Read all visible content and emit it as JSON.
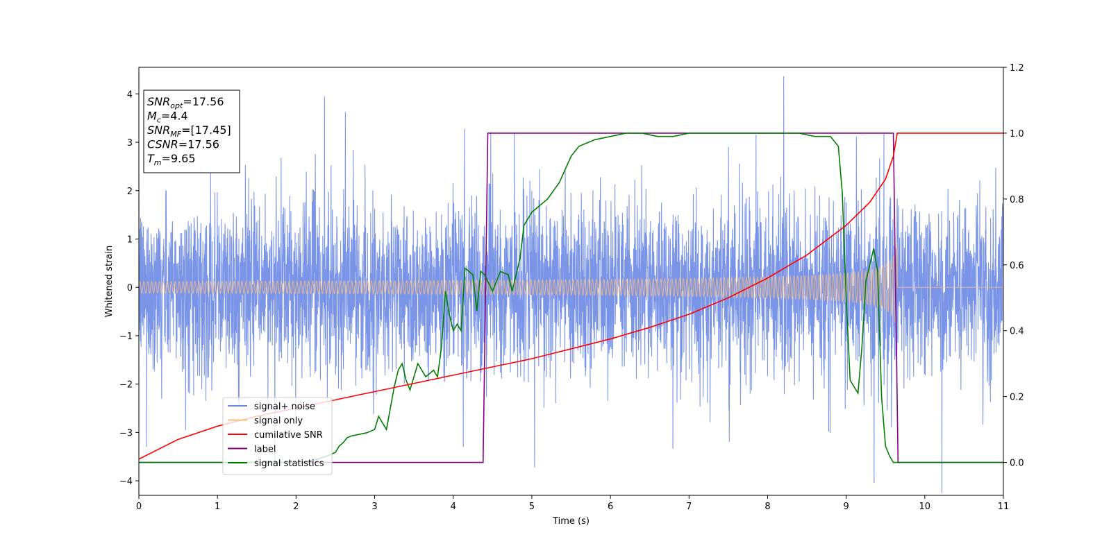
{
  "chart_data": {
    "type": "line",
    "xlabel": "Time (s)",
    "ylabel": "Whitened strain",
    "xlim": [
      0,
      11
    ],
    "ylim_left": [
      -4.3,
      4.55
    ],
    "ylim_right": [
      -0.1,
      1.2
    ],
    "xticks": [
      0,
      1,
      2,
      3,
      4,
      5,
      6,
      7,
      8,
      9,
      10,
      11
    ],
    "yticks_left": [
      -4,
      -3,
      -2,
      -1,
      0,
      1,
      2,
      3,
      4
    ],
    "yticks_right": [
      "0.0",
      "0.2",
      "0.4",
      "0.6",
      "0.8",
      "1.0",
      "1.2"
    ],
    "grid": false,
    "legend_position": "lower-left",
    "info_box": [
      {
        "main": "SNR",
        "sub": "opt",
        "rest": "=17.56"
      },
      {
        "main": "M",
        "sub": "c",
        "rest": "=4.4"
      },
      {
        "main": "SNR",
        "sub": "MF",
        "rest": "=[17.45]"
      },
      {
        "main": "CSNR",
        "sub": "",
        "rest": "=17.56"
      },
      {
        "main": "T",
        "sub": "m",
        "rest": "=9.65"
      }
    ],
    "series": [
      {
        "name": "signal+ noise",
        "axis": "left",
        "color": "#6b8ae6",
        "noise_sigma": 0.85,
        "signal_start": 0,
        "merger_time": 9.65
      },
      {
        "name": "signal only",
        "axis": "left",
        "color": "#ffbe7a",
        "amplitude_at_start": 0.12,
        "amplitude_at_merger": 1.0,
        "merger_time": 9.65
      },
      {
        "name": "cumilative SNR",
        "axis": "right",
        "color": "#ff0000",
        "x": [
          0,
          0.5,
          1,
          1.5,
          2,
          2.5,
          3,
          3.5,
          4,
          4.5,
          5,
          5.5,
          6,
          6.5,
          7,
          7.5,
          8,
          8.5,
          9,
          9.3,
          9.5,
          9.6,
          9.65,
          11
        ],
        "y": [
          0.01,
          0.07,
          0.11,
          0.14,
          0.165,
          0.19,
          0.215,
          0.24,
          0.265,
          0.29,
          0.315,
          0.345,
          0.375,
          0.41,
          0.45,
          0.5,
          0.56,
          0.63,
          0.72,
          0.79,
          0.86,
          0.93,
          1.0,
          1.0
        ]
      },
      {
        "name": "label",
        "axis": "right",
        "color": "#800080",
        "x": [
          0,
          4.38,
          4.44,
          9.6,
          9.66,
          11
        ],
        "y": [
          0.0,
          0.0,
          1.0,
          1.0,
          0.0,
          0.0
        ]
      },
      {
        "name": "signal statistics",
        "axis": "right",
        "color": "#008000",
        "x": [
          0,
          0.5,
          1,
          1.5,
          2,
          2.2,
          2.4,
          2.5,
          2.55,
          2.6,
          2.65,
          2.7,
          2.8,
          2.9,
          3.0,
          3.05,
          3.1,
          3.15,
          3.25,
          3.3,
          3.35,
          3.4,
          3.45,
          3.5,
          3.55,
          3.65,
          3.7,
          3.75,
          3.8,
          3.85,
          3.9,
          3.95,
          4.0,
          4.05,
          4.1,
          4.15,
          4.2,
          4.25,
          4.3,
          4.35,
          4.4,
          4.5,
          4.6,
          4.7,
          4.75,
          4.85,
          4.9,
          5.0,
          5.2,
          5.35,
          5.5,
          5.6,
          5.7,
          5.8,
          6.0,
          6.2,
          6.4,
          6.6,
          6.8,
          7.0,
          7.3,
          7.6,
          7.9,
          8.2,
          8.4,
          8.6,
          8.7,
          8.8,
          8.9,
          8.95,
          9.0,
          9.05,
          9.1,
          9.15,
          9.2,
          9.25,
          9.3,
          9.35,
          9.4,
          9.45,
          9.5,
          9.55,
          9.6,
          9.65,
          9.7,
          10,
          11
        ],
        "y": [
          0.0,
          0.0,
          0.0,
          0.0,
          0.0,
          0.005,
          0.02,
          0.03,
          0.05,
          0.06,
          0.075,
          0.08,
          0.085,
          0.09,
          0.1,
          0.14,
          0.12,
          0.1,
          0.23,
          0.28,
          0.3,
          0.25,
          0.22,
          0.26,
          0.3,
          0.26,
          0.27,
          0.28,
          0.26,
          0.35,
          0.52,
          0.45,
          0.4,
          0.42,
          0.4,
          0.59,
          0.58,
          0.57,
          0.46,
          0.58,
          0.57,
          0.52,
          0.58,
          0.57,
          0.52,
          0.62,
          0.72,
          0.76,
          0.8,
          0.85,
          0.93,
          0.96,
          0.97,
          0.98,
          0.99,
          1.0,
          1.0,
          0.99,
          0.99,
          1.0,
          1.0,
          1.0,
          1.0,
          1.0,
          1.0,
          0.99,
          0.99,
          0.99,
          0.96,
          0.82,
          0.5,
          0.25,
          0.23,
          0.21,
          0.35,
          0.55,
          0.6,
          0.65,
          0.58,
          0.2,
          0.05,
          0.02,
          0.0,
          0.0,
          0.0,
          0.0,
          0.0
        ]
      }
    ]
  }
}
